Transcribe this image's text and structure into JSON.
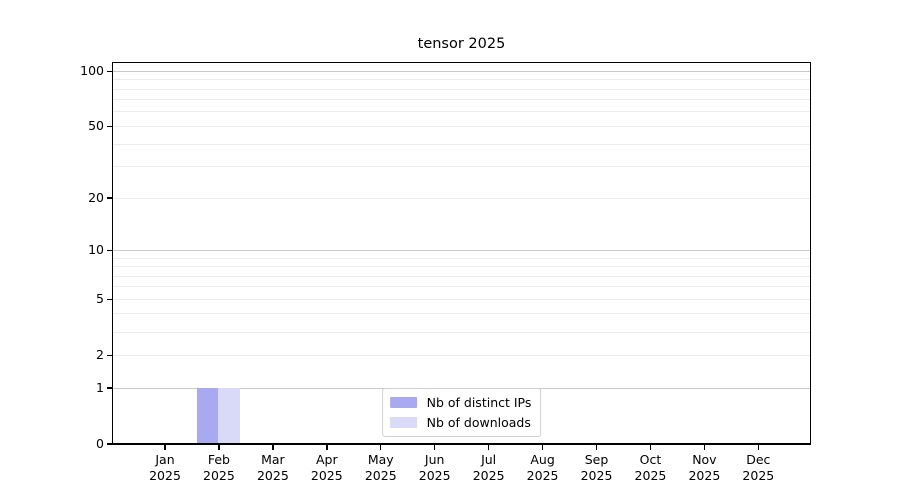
{
  "chart_data": {
    "type": "bar",
    "title": "tensor 2025",
    "categories": [
      "Jan 2025",
      "Feb 2025",
      "Mar 2025",
      "Apr 2025",
      "May 2025",
      "Jun 2025",
      "Jul 2025",
      "Aug 2025",
      "Sep 2025",
      "Oct 2025",
      "Nov 2025",
      "Dec 2025"
    ],
    "series": [
      {
        "name": "Nb of distinct IPs",
        "color": "#a9a9f2",
        "values": [
          0,
          1,
          0,
          0,
          0,
          0,
          0,
          0,
          0,
          0,
          0,
          0
        ]
      },
      {
        "name": "Nb of downloads",
        "color": "#d9d9f8",
        "values": [
          0,
          1,
          0,
          0,
          0,
          0,
          0,
          0,
          0,
          0,
          0,
          0
        ]
      }
    ],
    "xlabel": "",
    "ylabel": "",
    "yscale": "log1p",
    "ylim": [
      0,
      100
    ],
    "ytick_values": [
      0,
      1,
      2,
      5,
      10,
      20,
      50,
      100
    ],
    "grid": {
      "orientation": "horizontal",
      "major_values": [
        1,
        10,
        100
      ],
      "minor_values": [
        2,
        3,
        4,
        5,
        6,
        7,
        8,
        9,
        20,
        30,
        40,
        50,
        60,
        70,
        80,
        90
      ]
    },
    "legend_position": "lower center"
  },
  "colors": {
    "background": "#ffffff",
    "text": "#000000",
    "spine": "#000000",
    "grid_major": "#c9c9c9",
    "grid_minor": "#ececec",
    "legend_border": "#d0d0d0",
    "legend_background": "#ffffff"
  }
}
